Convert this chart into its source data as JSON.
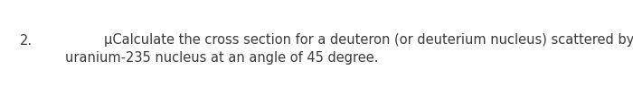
{
  "background_color": "#ffffff",
  "number_text": "2.",
  "line1_text": "μCalculate the cross section for a deuteron (or deuterium nucleus) scattered by a",
  "line2_text": "uranium-235 nucleus at an angle of 45 degree.",
  "font_size": 10.5,
  "font_color": "#3a3a3a",
  "fig_width": 7.0,
  "fig_height": 1.17,
  "dpi": 100
}
